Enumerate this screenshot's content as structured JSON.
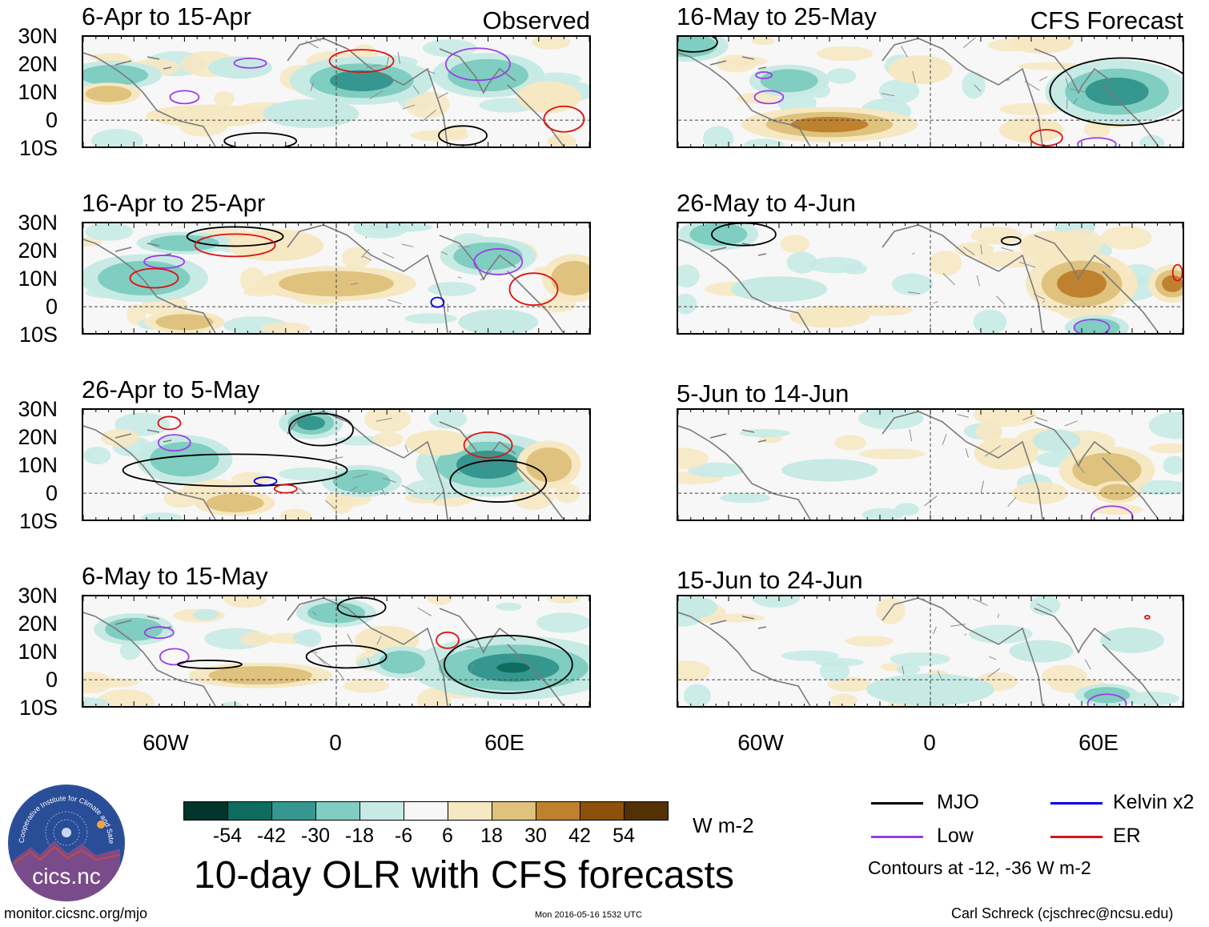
{
  "panels_left": [
    {
      "title": "6-Apr to 15-Apr",
      "tag": "Observed"
    },
    {
      "title": "16-Apr to 25-Apr",
      "tag": ""
    },
    {
      "title": "26-Apr to 5-May",
      "tag": ""
    },
    {
      "title": "6-May to 15-May",
      "tag": ""
    }
  ],
  "panels_right": [
    {
      "title": "16-May to 25-May",
      "tag": "CFS Forecast"
    },
    {
      "title": "26-May to 4-Jun",
      "tag": ""
    },
    {
      "title": "5-Jun to 14-Jun",
      "tag": ""
    },
    {
      "title": "15-Jun to 24-Jun",
      "tag": ""
    }
  ],
  "lat_labels": [
    "30N",
    "20N",
    "10N",
    "0",
    "10S"
  ],
  "lon_labels": [
    "60W",
    "0",
    "60E"
  ],
  "colorbar": {
    "colors": [
      "#01352b",
      "#0e6b60",
      "#35978f",
      "#80cdc1",
      "#c7eae5",
      "#f7f7f7",
      "#f6e8c3",
      "#dfc27d",
      "#bf812d",
      "#8c510a",
      "#543005"
    ],
    "labels": [
      "-54",
      "-42",
      "-30",
      "-18",
      "-6",
      "6",
      "18",
      "30",
      "42",
      "54"
    ],
    "units": "W m-2"
  },
  "main_title": "10-day OLR with CFS forecasts",
  "legend": {
    "items": [
      {
        "label": "MJO",
        "color": "#000000"
      },
      {
        "label": "Kelvin x2",
        "color": "#0000dd"
      },
      {
        "label": "Low",
        "color": "#9a3ee8"
      },
      {
        "label": "ER",
        "color": "#dd1111"
      }
    ],
    "note": "Contours at -12, -36 W m-2"
  },
  "logo_text": "cics.nc",
  "logo_ring_text": "Cooperative Institute for Climate and Satellites",
  "footer": {
    "left": "monitor.cicsnc.org/mjo",
    "center": "Mon 2016-05-16 1532 UTC",
    "right": "Carl Schreck (cjschrec@ncsu.edu)"
  }
}
